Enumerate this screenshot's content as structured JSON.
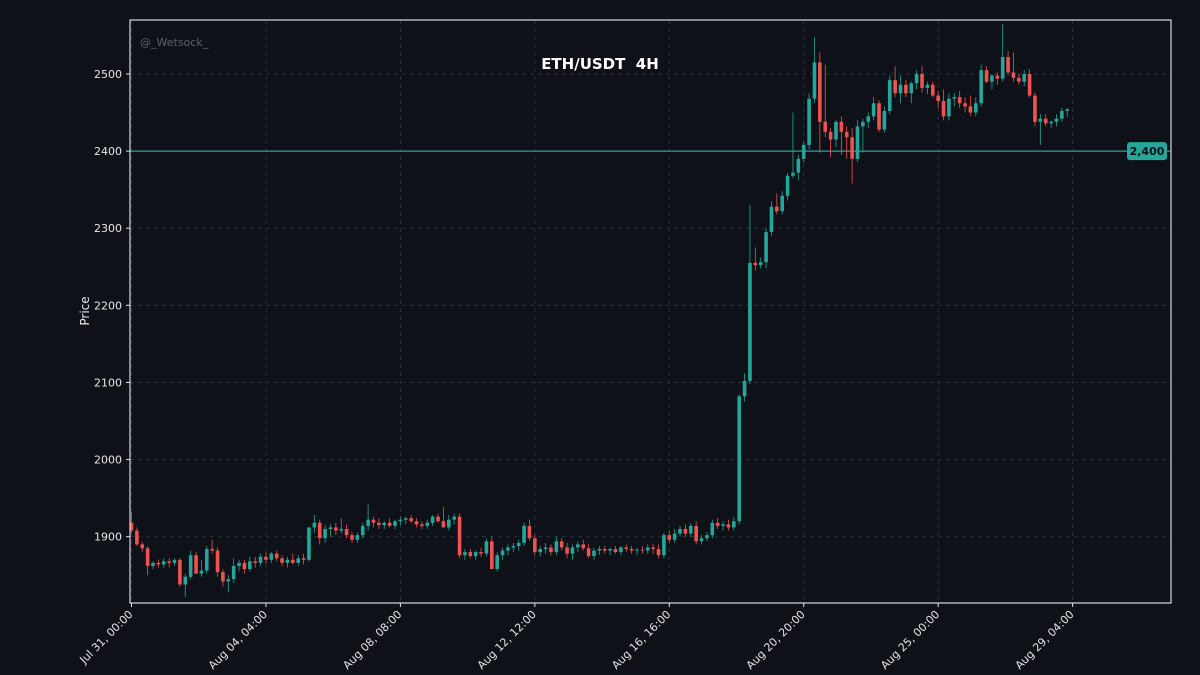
{
  "chart_data": {
    "type": "candlestick",
    "title": "ETH/USDT  4H",
    "watermark": "@_Wetsock_",
    "ylabel": "Price",
    "ylim": [
      1814,
      2570
    ],
    "yticks": [
      1900,
      2000,
      2100,
      2200,
      2300,
      2400,
      2500
    ],
    "xlim": [
      0,
      181
    ],
    "xticks": [
      {
        "i": 0,
        "label": "Jul 31, 00:00"
      },
      {
        "i": 25,
        "label": "Aug 04, 04:00"
      },
      {
        "i": 50,
        "label": "Aug 08, 08:00"
      },
      {
        "i": 75,
        "label": "Aug 12, 12:00"
      },
      {
        "i": 100,
        "label": "Aug 16, 16:00"
      },
      {
        "i": 125,
        "label": "Aug 20, 20:00"
      },
      {
        "i": 150,
        "label": "Aug 25, 00:00"
      },
      {
        "i": 175,
        "label": "Aug 29, 04:00"
      }
    ],
    "hline": {
      "value": 2400,
      "label": "2,400"
    },
    "colors": {
      "up": "#26a69a",
      "down": "#ef5350",
      "background": "#0e1117",
      "line": "#26a69a",
      "grid": "#2a2f3a",
      "text": "#e6e6e6"
    },
    "ohlc": [
      [
        1918,
        1932,
        1905,
        1908
      ],
      [
        1908,
        1912,
        1888,
        1890
      ],
      [
        1890,
        1893,
        1880,
        1885
      ],
      [
        1885,
        1888,
        1850,
        1862
      ],
      [
        1862,
        1868,
        1858,
        1866
      ],
      [
        1866,
        1870,
        1860,
        1864
      ],
      [
        1864,
        1872,
        1860,
        1868
      ],
      [
        1868,
        1872,
        1860,
        1866
      ],
      [
        1866,
        1872,
        1862,
        1870
      ],
      [
        1870,
        1872,
        1835,
        1838
      ],
      [
        1838,
        1852,
        1822,
        1848
      ],
      [
        1848,
        1882,
        1845,
        1876
      ],
      [
        1876,
        1880,
        1858,
        1852
      ],
      [
        1852,
        1870,
        1848,
        1856
      ],
      [
        1856,
        1888,
        1852,
        1884
      ],
      [
        1884,
        1896,
        1878,
        1882
      ],
      [
        1882,
        1886,
        1848,
        1854
      ],
      [
        1854,
        1858,
        1835,
        1842
      ],
      [
        1842,
        1850,
        1828,
        1845
      ],
      [
        1845,
        1872,
        1840,
        1862
      ],
      [
        1862,
        1870,
        1855,
        1866
      ],
      [
        1866,
        1870,
        1852,
        1858
      ],
      [
        1858,
        1874,
        1855,
        1868
      ],
      [
        1868,
        1874,
        1860,
        1866
      ],
      [
        1866,
        1878,
        1862,
        1874
      ],
      [
        1874,
        1880,
        1865,
        1870
      ],
      [
        1870,
        1880,
        1866,
        1878
      ],
      [
        1878,
        1882,
        1868,
        1872
      ],
      [
        1872,
        1876,
        1862,
        1866
      ],
      [
        1866,
        1874,
        1860,
        1870
      ],
      [
        1870,
        1878,
        1864,
        1866
      ],
      [
        1866,
        1876,
        1862,
        1872
      ],
      [
        1872,
        1878,
        1864,
        1870
      ],
      [
        1870,
        1912,
        1868,
        1912
      ],
      [
        1912,
        1928,
        1905,
        1918
      ],
      [
        1918,
        1922,
        1890,
        1898
      ],
      [
        1898,
        1915,
        1892,
        1910
      ],
      [
        1910,
        1916,
        1900,
        1912
      ],
      [
        1912,
        1918,
        1902,
        1908
      ],
      [
        1908,
        1924,
        1904,
        1910
      ],
      [
        1910,
        1916,
        1898,
        1902
      ],
      [
        1902,
        1906,
        1892,
        1896
      ],
      [
        1896,
        1905,
        1892,
        1902
      ],
      [
        1902,
        1918,
        1898,
        1914
      ],
      [
        1914,
        1942,
        1908,
        1922
      ],
      [
        1922,
        1926,
        1912,
        1918
      ],
      [
        1918,
        1924,
        1910,
        1915
      ],
      [
        1915,
        1920,
        1910,
        1918
      ],
      [
        1918,
        1924,
        1912,
        1914
      ],
      [
        1914,
        1922,
        1910,
        1920
      ],
      [
        1920,
        1926,
        1915,
        1922
      ],
      [
        1922,
        1926,
        1916,
        1924
      ],
      [
        1924,
        1928,
        1918,
        1920
      ],
      [
        1920,
        1924,
        1912,
        1916
      ],
      [
        1916,
        1920,
        1910,
        1914
      ],
      [
        1914,
        1922,
        1910,
        1918
      ],
      [
        1918,
        1928,
        1914,
        1926
      ],
      [
        1926,
        1930,
        1918,
        1920
      ],
      [
        1920,
        1938,
        1916,
        1912
      ],
      [
        1912,
        1928,
        1908,
        1922
      ],
      [
        1922,
        1930,
        1916,
        1926
      ],
      [
        1926,
        1930,
        1872,
        1876
      ],
      [
        1876,
        1884,
        1870,
        1880
      ],
      [
        1880,
        1884,
        1872,
        1875
      ],
      [
        1875,
        1882,
        1870,
        1880
      ],
      [
        1880,
        1886,
        1874,
        1878
      ],
      [
        1878,
        1898,
        1874,
        1894
      ],
      [
        1894,
        1900,
        1860,
        1858
      ],
      [
        1858,
        1880,
        1855,
        1876
      ],
      [
        1876,
        1886,
        1870,
        1882
      ],
      [
        1882,
        1890,
        1876,
        1886
      ],
      [
        1886,
        1892,
        1880,
        1888
      ],
      [
        1888,
        1896,
        1882,
        1892
      ],
      [
        1892,
        1918,
        1888,
        1914
      ],
      [
        1914,
        1922,
        1895,
        1898
      ],
      [
        1898,
        1902,
        1876,
        1880
      ],
      [
        1880,
        1888,
        1874,
        1884
      ],
      [
        1884,
        1892,
        1878,
        1886
      ],
      [
        1886,
        1890,
        1876,
        1880
      ],
      [
        1880,
        1900,
        1876,
        1894
      ],
      [
        1894,
        1898,
        1882,
        1886
      ],
      [
        1886,
        1892,
        1872,
        1878
      ],
      [
        1878,
        1890,
        1870,
        1886
      ],
      [
        1886,
        1894,
        1880,
        1890
      ],
      [
        1890,
        1896,
        1882,
        1885
      ],
      [
        1885,
        1890,
        1872,
        1875
      ],
      [
        1875,
        1886,
        1870,
        1882
      ],
      [
        1882,
        1888,
        1876,
        1884
      ],
      [
        1884,
        1888,
        1878,
        1882
      ],
      [
        1882,
        1886,
        1876,
        1884
      ],
      [
        1884,
        1888,
        1878,
        1880
      ],
      [
        1880,
        1888,
        1876,
        1886
      ],
      [
        1886,
        1890,
        1880,
        1884
      ],
      [
        1884,
        1888,
        1878,
        1882
      ],
      [
        1882,
        1886,
        1876,
        1883
      ],
      [
        1883,
        1888,
        1878,
        1882
      ],
      [
        1882,
        1890,
        1878,
        1886
      ],
      [
        1886,
        1890,
        1878,
        1884
      ],
      [
        1884,
        1890,
        1872,
        1876
      ],
      [
        1876,
        1905,
        1872,
        1902
      ],
      [
        1902,
        1908,
        1892,
        1896
      ],
      [
        1896,
        1910,
        1892,
        1904
      ],
      [
        1904,
        1914,
        1900,
        1910
      ],
      [
        1910,
        1916,
        1900,
        1904
      ],
      [
        1904,
        1918,
        1900,
        1914
      ],
      [
        1914,
        1920,
        1890,
        1894
      ],
      [
        1894,
        1902,
        1890,
        1898
      ],
      [
        1898,
        1906,
        1894,
        1902
      ],
      [
        1902,
        1922,
        1898,
        1918
      ],
      [
        1918,
        1924,
        1910,
        1914
      ],
      [
        1914,
        1920,
        1908,
        1916
      ],
      [
        1916,
        1922,
        1908,
        1912
      ],
      [
        1912,
        1926,
        1908,
        1920
      ],
      [
        1920,
        2085,
        1916,
        2082
      ],
      [
        2082,
        2112,
        2075,
        2102
      ],
      [
        2102,
        2330,
        2098,
        2255
      ],
      [
        2255,
        2275,
        2245,
        2252
      ],
      [
        2252,
        2262,
        2248,
        2256
      ],
      [
        2256,
        2300,
        2248,
        2295
      ],
      [
        2295,
        2335,
        2290,
        2328
      ],
      [
        2328,
        2345,
        2318,
        2322
      ],
      [
        2322,
        2348,
        2318,
        2342
      ],
      [
        2342,
        2372,
        2336,
        2368
      ],
      [
        2368,
        2450,
        2365,
        2372
      ],
      [
        2372,
        2395,
        2362,
        2390
      ],
      [
        2390,
        2412,
        2385,
        2408
      ],
      [
        2408,
        2475,
        2402,
        2468
      ],
      [
        2468,
        2548,
        2462,
        2515
      ],
      [
        2515,
        2528,
        2398,
        2438
      ],
      [
        2438,
        2512,
        2418,
        2425
      ],
      [
        2425,
        2430,
        2392,
        2415
      ],
      [
        2415,
        2440,
        2405,
        2438
      ],
      [
        2438,
        2445,
        2395,
        2425
      ],
      [
        2425,
        2432,
        2390,
        2418
      ],
      [
        2418,
        2430,
        2358,
        2390
      ],
      [
        2390,
        2440,
        2386,
        2432
      ],
      [
        2432,
        2442,
        2398,
        2438
      ],
      [
        2438,
        2450,
        2430,
        2445
      ],
      [
        2445,
        2470,
        2440,
        2462
      ],
      [
        2462,
        2466,
        2425,
        2428
      ],
      [
        2428,
        2458,
        2424,
        2452
      ],
      [
        2452,
        2498,
        2448,
        2492
      ],
      [
        2492,
        2510,
        2470,
        2475
      ],
      [
        2475,
        2498,
        2462,
        2486
      ],
      [
        2486,
        2492,
        2470,
        2475
      ],
      [
        2475,
        2490,
        2462,
        2488
      ],
      [
        2488,
        2505,
        2480,
        2500
      ],
      [
        2500,
        2510,
        2476,
        2482
      ],
      [
        2482,
        2490,
        2474,
        2486
      ],
      [
        2486,
        2490,
        2470,
        2472
      ],
      [
        2472,
        2478,
        2456,
        2465
      ],
      [
        2465,
        2480,
        2440,
        2445
      ],
      [
        2445,
        2475,
        2440,
        2468
      ],
      [
        2468,
        2475,
        2458,
        2470
      ],
      [
        2470,
        2478,
        2456,
        2462
      ],
      [
        2462,
        2470,
        2450,
        2458
      ],
      [
        2458,
        2472,
        2446,
        2450
      ],
      [
        2450,
        2470,
        2445,
        2462
      ],
      [
        2462,
        2512,
        2458,
        2505
      ],
      [
        2505,
        2510,
        2488,
        2490
      ],
      [
        2490,
        2500,
        2480,
        2498
      ],
      [
        2498,
        2502,
        2486,
        2494
      ],
      [
        2494,
        2565,
        2490,
        2522
      ],
      [
        2522,
        2530,
        2498,
        2502
      ],
      [
        2502,
        2528,
        2490,
        2495
      ],
      [
        2495,
        2500,
        2486,
        2490
      ],
      [
        2490,
        2505,
        2484,
        2500
      ],
      [
        2500,
        2506,
        2470,
        2472
      ],
      [
        2472,
        2476,
        2432,
        2438
      ],
      [
        2438,
        2448,
        2408,
        2442
      ],
      [
        2442,
        2448,
        2432,
        2436
      ],
      [
        2436,
        2440,
        2430,
        2438
      ],
      [
        2438,
        2448,
        2432,
        2442
      ],
      [
        2442,
        2456,
        2438,
        2452
      ],
      [
        2452,
        2456,
        2444,
        2454
      ]
    ]
  }
}
